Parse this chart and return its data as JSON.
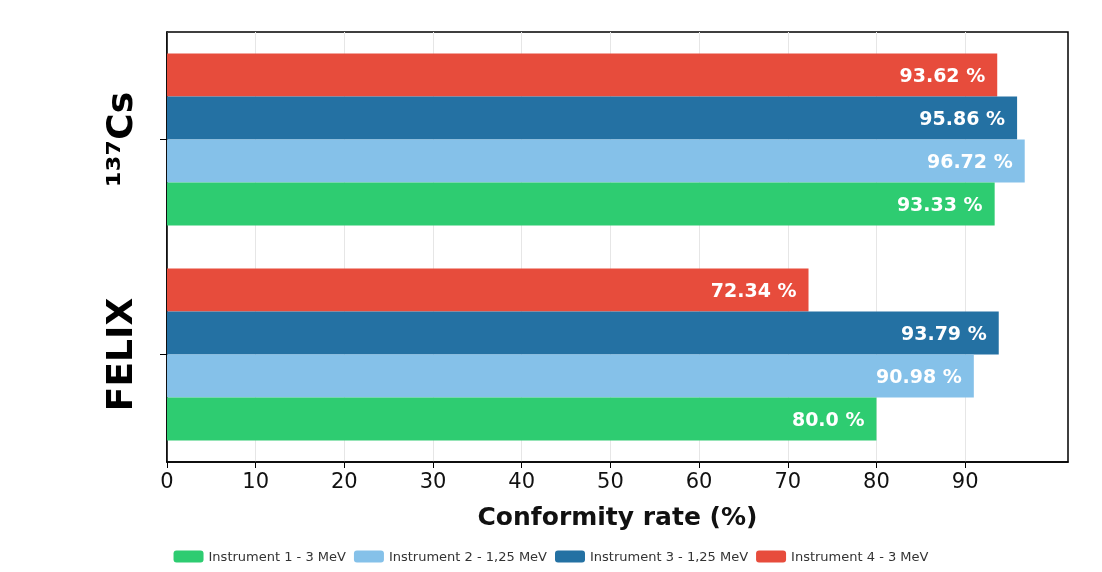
{
  "chart_data": {
    "type": "bar",
    "orientation": "horizontal",
    "xlabel": "Conformity rate (%)",
    "categories": [
      "¹³⁷Cs",
      "FELIX"
    ],
    "series": [
      {
        "name": "Instrument 1 - 3 MeV",
        "color": "#2ecc71",
        "values": [
          93.33,
          80.0
        ],
        "value_labels": [
          "93.33 %",
          "80.0 %"
        ]
      },
      {
        "name": "Instrument 2 - 1,25 MeV",
        "color": "#85c1e9",
        "values": [
          96.72,
          90.98
        ],
        "value_labels": [
          "96.72 %",
          "90.98 %"
        ]
      },
      {
        "name": "Instrument 3 - 1,25 MeV",
        "color": "#2471a3",
        "values": [
          95.86,
          93.79
        ],
        "value_labels": [
          "95.86 %",
          "93.79 %"
        ]
      },
      {
        "name": "Instrument 4 - 3 MeV",
        "color": "#e74c3c",
        "values": [
          93.62,
          72.34
        ],
        "value_labels": [
          "93.62 %",
          "72.34 %"
        ]
      }
    ],
    "xlim": [
      0,
      101.6
    ],
    "xticks": [
      0,
      10,
      20,
      30,
      40,
      50,
      60,
      70,
      80,
      90
    ],
    "grid": "x",
    "legend": "bottom"
  }
}
